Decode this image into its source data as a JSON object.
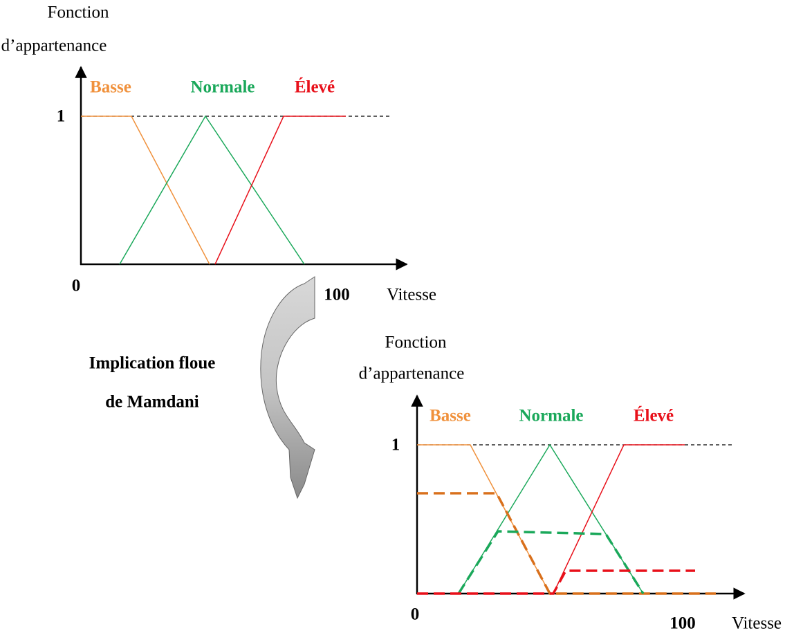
{
  "top_chart": {
    "y_label_line1": "Fonction",
    "y_label_line2": "d’appartenance",
    "legend": {
      "basse": "Basse",
      "normale": "Normale",
      "eleve": "Élevé"
    },
    "y_tick": "1",
    "x_min": "0",
    "x_max": "100",
    "x_label": "Vitesse"
  },
  "caption": {
    "line1": "Implication floue",
    "line2": "de Mamdani"
  },
  "bottom_chart": {
    "y_label_line1": "Fonction",
    "y_label_line2": "d’appartenance",
    "legend": {
      "basse": "Basse",
      "normale": "Normale",
      "eleve": "Élevé"
    },
    "y_tick": "1",
    "x_min": "0",
    "x_max": "100",
    "x_label": "Vitesse"
  }
}
